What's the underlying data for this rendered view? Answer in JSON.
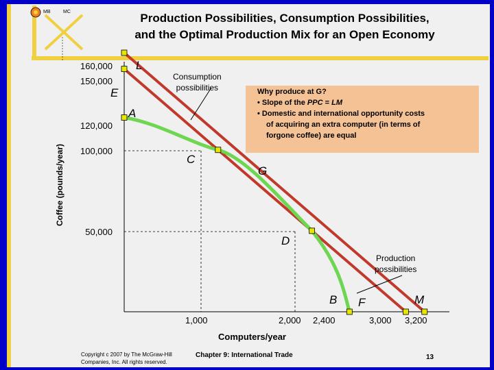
{
  "slide": {
    "title_line1": "Production Possibilities, Consumption Possibilities,",
    "title_line2": "and the Optimal Production Mix for an Open Economy",
    "logo_left": "MB",
    "logo_right": "MC",
    "footer_copyright_line1": "Copyright c 2007 by The McGraw-Hill",
    "footer_copyright_line2": "Companies, Inc. All rights reserved.",
    "footer_chapter": "Chapter 9: International Trade",
    "page_number": "13",
    "colors": {
      "background": "#f0f0f0",
      "border": "#0000c8",
      "ppc": "#6ed650",
      "cpl": "#c0392b",
      "box": "#f5c296",
      "point": "#e6e600"
    }
  },
  "chart_data": {
    "type": "line",
    "xlabel": "Computers/year",
    "ylabel": "Coffee (pounds/year)",
    "x_ticks": [
      "1,000",
      "2,000",
      "2,400",
      "3,000",
      "3,200"
    ],
    "y_ticks": [
      "160,000",
      "150,000",
      "120,000",
      "100,000",
      "50,000"
    ],
    "xlim": [
      0,
      3200
    ],
    "ylim": [
      0,
      160000
    ],
    "series": [
      {
        "name": "Production possibilities",
        "curve": "ppc",
        "points": [
          [
            0,
            120000
          ],
          [
            1000,
            100000
          ],
          [
            2000,
            50000
          ],
          [
            2400,
            0
          ]
        ]
      },
      {
        "name": "Consumption possibilities",
        "curve": "cpl",
        "points": [
          [
            0,
            160000
          ],
          [
            3200,
            0
          ]
        ]
      },
      {
        "curve": "cpl",
        "points": [
          [
            0,
            150000
          ],
          [
            3000,
            0
          ]
        ]
      }
    ],
    "points": [
      {
        "label": "L",
        "x": 0,
        "y": 160000
      },
      {
        "label": "E",
        "x": 0,
        "y": 150000
      },
      {
        "label": "A",
        "x": 0,
        "y": 120000
      },
      {
        "label": "C",
        "x": 1000,
        "y": 100000
      },
      {
        "label": "G",
        "x": 1000,
        "y": 100000
      },
      {
        "label": "D",
        "x": 2000,
        "y": 50000
      },
      {
        "label": "B",
        "x": 2400,
        "y": 0
      },
      {
        "label": "F",
        "x": 3000,
        "y": 0
      },
      {
        "label": "M",
        "x": 3200,
        "y": 0
      }
    ],
    "annotations": {
      "consumption_label_line1": "Consumption",
      "consumption_label_line2": "possibilities",
      "production_label_line1": "Production",
      "production_label_line2": "possibilities",
      "box_title": "Why produce at G?",
      "box_line1_prefix": "• Slope of the ",
      "box_line1_ppc": "PPC",
      "box_line1_eq": " = ",
      "box_line1_lm": "LM",
      "box_line2": "• Domestic and international opportunity costs",
      "box_line3": "of acquiring an extra computer (in terms of",
      "box_line4": "forgone coffee) are equal"
    }
  }
}
